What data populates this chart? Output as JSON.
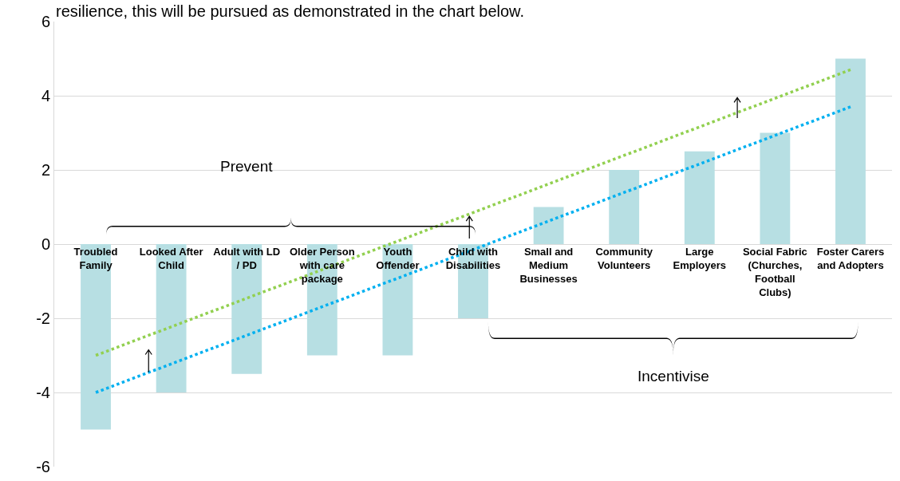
{
  "chart_data": {
    "type": "bar",
    "categories": [
      "Troubled Family",
      "Looked After Child",
      "Adult with LD / PD",
      "Older Person with care package",
      "Youth Offender",
      "Child with Disabilities",
      "Small and Medium Businesses",
      "Community Volunteers",
      "Large Employers",
      "Social Fabric (Churches, Football Clubs)",
      "Foster Carers and Adopters"
    ],
    "series": [
      {
        "color": "#b7dfe3",
        "values": [
          -5,
          -4,
          -3.5,
          -3,
          -3,
          -2,
          1,
          2,
          2.5,
          3,
          5
        ]
      },
      {
        "type": "line",
        "color": "#92d050",
        "x": [
          "Troubled Family",
          "Foster Carers and Adopters"
        ],
        "values": [
          -3,
          4.7
        ],
        "line_style": "dotted"
      },
      {
        "type": "line",
        "color": "#00b0f0",
        "x": [
          "Troubled Family",
          "Foster Carers and Adopters"
        ],
        "values": [
          -4,
          3.7
        ],
        "line_style": "dotted"
      }
    ],
    "ylim": [
      -6,
      6
    ],
    "yticks": [
      -6,
      -4,
      -2,
      0,
      2,
      4,
      6
    ],
    "grid": "y",
    "legend": false,
    "annotations": [
      "resilience, this will be pursued as demonstrated in the chart below.",
      "Prevent",
      "Incentivise"
    ]
  }
}
